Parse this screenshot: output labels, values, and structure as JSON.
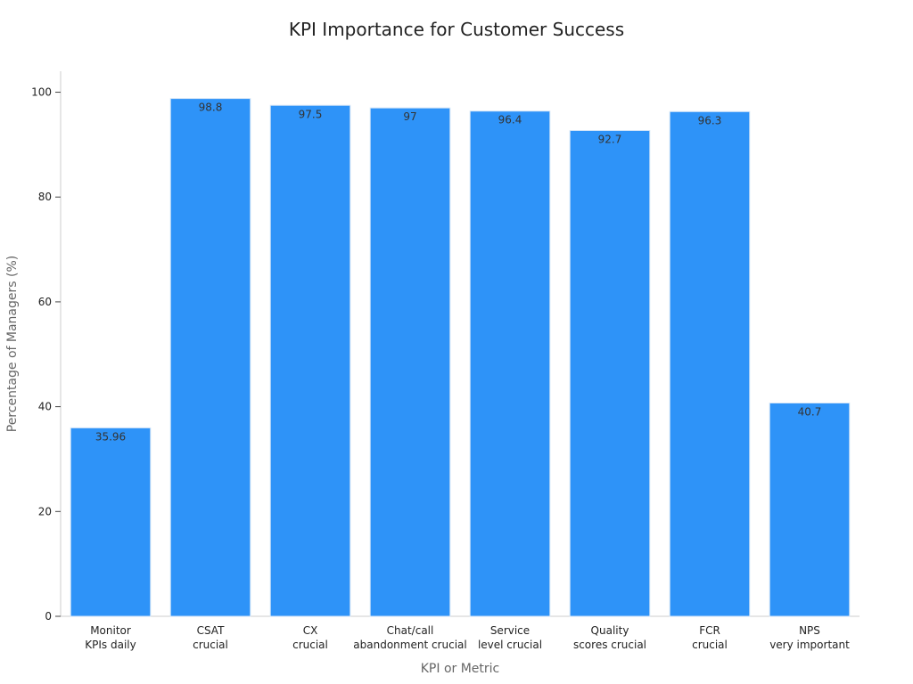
{
  "chart_data": {
    "type": "bar",
    "title": "KPI Importance for Customer Success",
    "xlabel": "KPI or Metric",
    "ylabel": "Percentage of Managers (%)",
    "categories": [
      [
        "Monitor",
        "KPIs daily"
      ],
      [
        "CSAT",
        "crucial"
      ],
      [
        "CX",
        "crucial"
      ],
      [
        "Chat/call",
        "abandonment crucial"
      ],
      [
        "Service",
        "level crucial"
      ],
      [
        "Quality",
        "scores crucial"
      ],
      [
        "FCR",
        "crucial"
      ],
      [
        "NPS",
        "very important"
      ]
    ],
    "values": [
      35.96,
      98.8,
      97.5,
      97,
      96.4,
      92.7,
      96.3,
      40.7
    ],
    "value_labels": [
      "35.96",
      "98.8",
      "97.5",
      "97",
      "96.4",
      "92.7",
      "96.3",
      "40.7"
    ],
    "ylim": [
      0,
      104
    ],
    "yticks": [
      0,
      20,
      40,
      60,
      80,
      100
    ],
    "grid": false,
    "legend": "none",
    "bar_color": "#2e93f8"
  }
}
